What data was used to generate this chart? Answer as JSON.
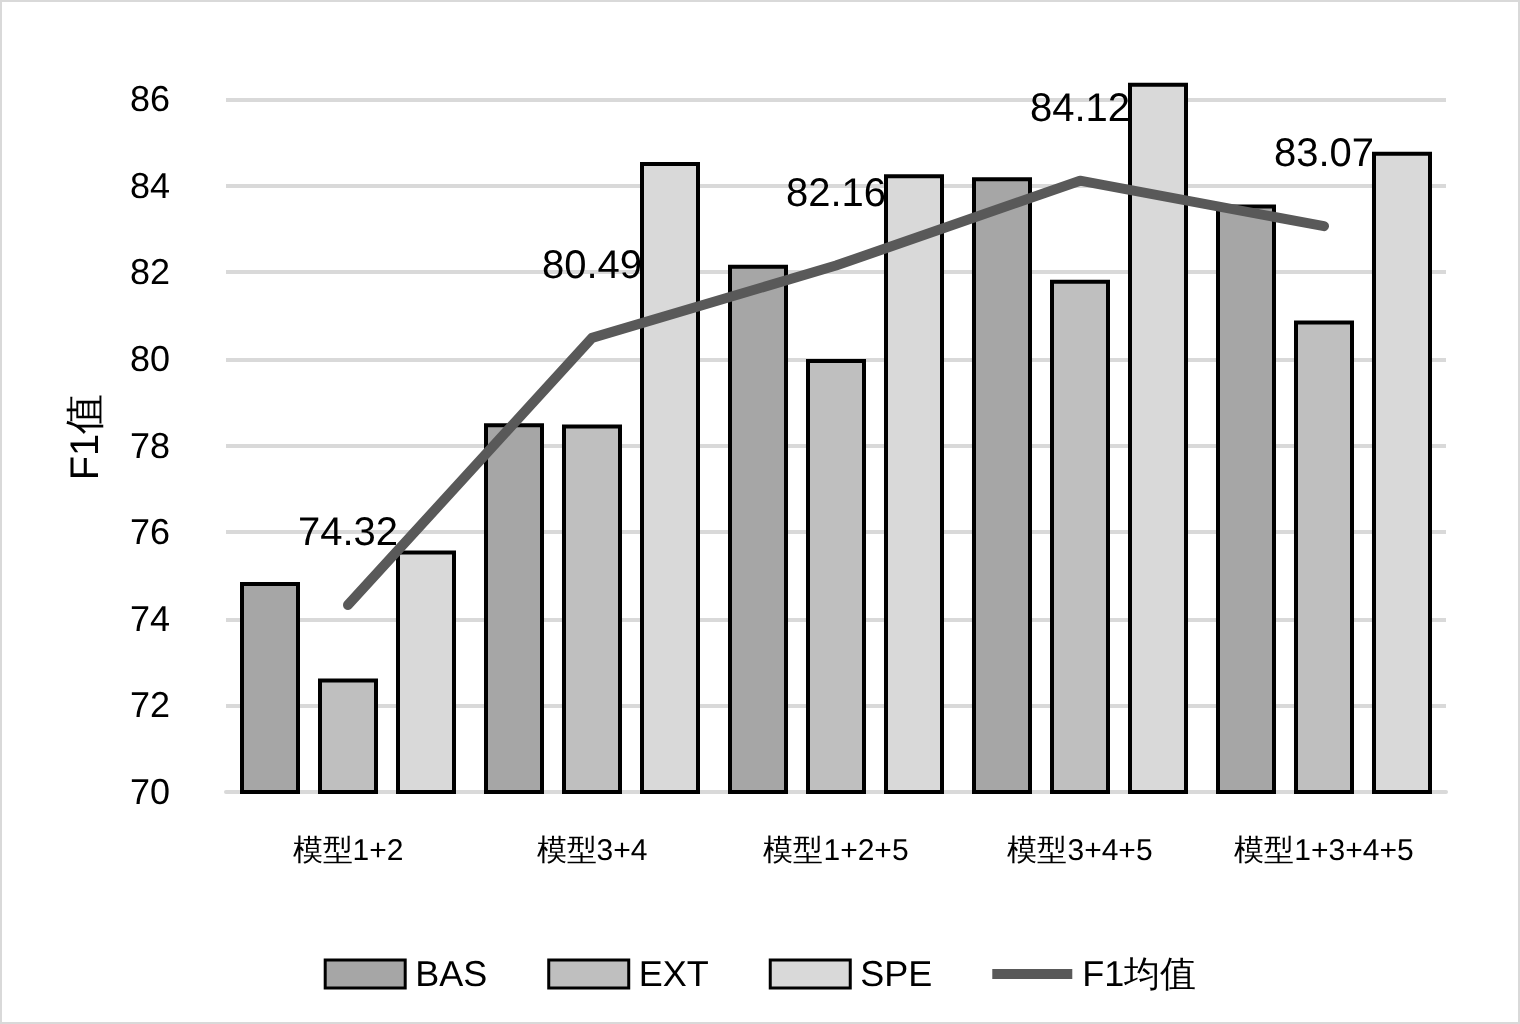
{
  "chart_data": {
    "type": "bar",
    "ylabel": "F1值",
    "categories": [
      "模型1+2",
      "模型3+4",
      "模型1+2+5",
      "模型3+4+5",
      "模型1+3+4+5"
    ],
    "series": [
      {
        "name": "BAS",
        "color": "#a6a6a6",
        "values": [
          74.85,
          78.52,
          82.18,
          84.2,
          83.57
        ]
      },
      {
        "name": "EXT",
        "color": "#bfbfbf",
        "values": [
          72.62,
          78.49,
          80.0,
          81.83,
          80.89
        ]
      },
      {
        "name": "SPE",
        "color": "#d9d9d9",
        "values": [
          75.58,
          84.55,
          84.27,
          86.38,
          84.79
        ]
      },
      {
        "name": "F1均值",
        "type": "line",
        "color": "#595959",
        "values": [
          74.32,
          80.49,
          82.16,
          84.12,
          83.07
        ],
        "data_labels": true
      }
    ],
    "ylim": [
      70,
      86.4
    ],
    "yticks": [
      70,
      72,
      74,
      76,
      78,
      80,
      82,
      84,
      86
    ],
    "grid": "y",
    "legend": "bottom",
    "marker": "none"
  }
}
